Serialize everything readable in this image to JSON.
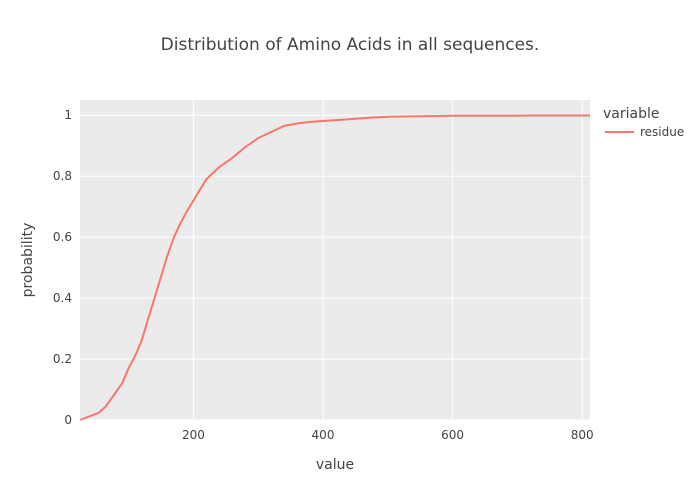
{
  "chart_data": {
    "type": "line",
    "title": "Distribution of Amino Acids in all sequences.",
    "xlabel": "value",
    "ylabel": "probability",
    "xlim": [
      25,
      812
    ],
    "ylim": [
      0,
      1.05
    ],
    "x_ticks": [
      200,
      400,
      600,
      800
    ],
    "y_ticks": [
      0,
      0.2,
      0.4,
      0.6,
      0.8,
      1
    ],
    "x_tick_labels": [
      "200",
      "400",
      "600",
      "800"
    ],
    "y_tick_labels": [
      "0",
      "0.2",
      "0.4",
      "0.6",
      "0.8",
      "1"
    ],
    "grid": true,
    "legend": {
      "title": "variable",
      "position": "right"
    },
    "series": [
      {
        "name": "residue",
        "color": "#F8766D",
        "x": [
          25,
          40,
          55,
          65,
          75,
          90,
          100,
          110,
          120,
          130,
          140,
          150,
          160,
          170,
          180,
          190,
          200,
          210,
          220,
          230,
          240,
          250,
          260,
          280,
          300,
          320,
          340,
          360,
          380,
          400,
          430,
          460,
          480,
          500,
          550,
          600,
          650,
          700,
          720,
          760,
          812
        ],
        "y": [
          0.0,
          0.012,
          0.025,
          0.045,
          0.075,
          0.12,
          0.17,
          0.21,
          0.26,
          0.33,
          0.4,
          0.47,
          0.54,
          0.6,
          0.645,
          0.685,
          0.72,
          0.755,
          0.79,
          0.81,
          0.83,
          0.845,
          0.86,
          0.895,
          0.925,
          0.945,
          0.965,
          0.973,
          0.978,
          0.981,
          0.985,
          0.99,
          0.993,
          0.995,
          0.997,
          0.998,
          0.998,
          0.998,
          0.999,
          0.999,
          0.999
        ]
      }
    ]
  }
}
